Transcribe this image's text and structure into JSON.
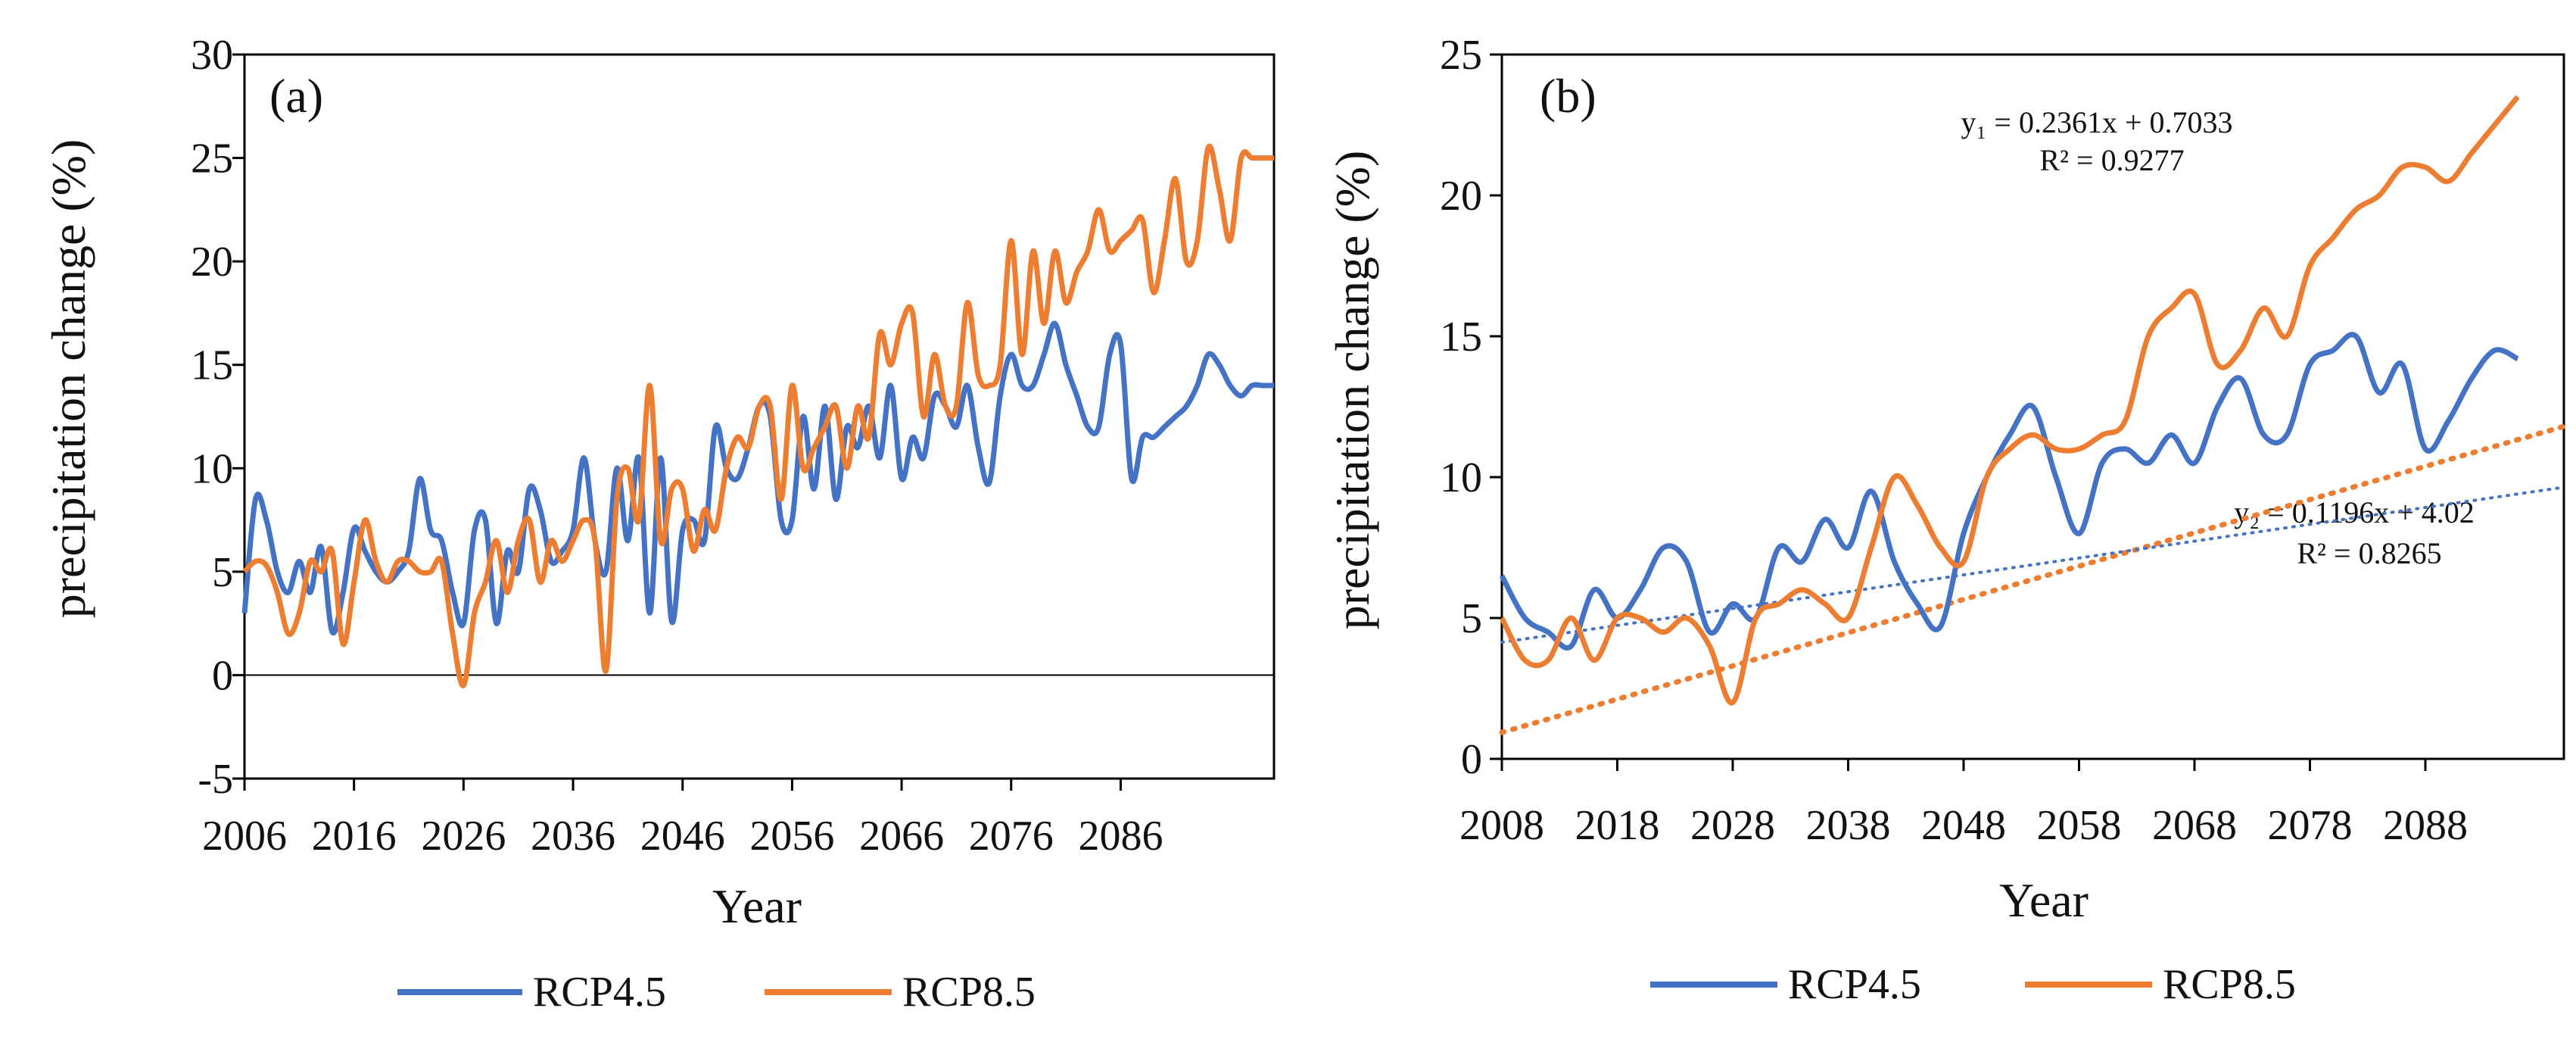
{
  "chart_data": [
    {
      "type": "line",
      "panel_label": "(a)",
      "xlabel": "Year",
      "ylabel": "precipitation  change (%)",
      "xlim": [
        2006,
        2100
      ],
      "ylim": [
        -5,
        30
      ],
      "yticks": [
        -5,
        0,
        5,
        10,
        15,
        20,
        25,
        30
      ],
      "xticks": [
        2006,
        2016,
        2026,
        2036,
        2046,
        2056,
        2066,
        2076,
        2086
      ],
      "legend_position": "bottom",
      "series": [
        {
          "name": "RCP4.5",
          "color": "#4472C4",
          "x": [
            2006,
            2007,
            2008,
            2009,
            2010,
            2011,
            2012,
            2013,
            2014,
            2015,
            2016,
            2017,
            2018,
            2019,
            2020,
            2021,
            2022,
            2023,
            2024,
            2025,
            2026,
            2027,
            2028,
            2029,
            2030,
            2031,
            2032,
            2033,
            2034,
            2035,
            2036,
            2037,
            2038,
            2039,
            2040,
            2041,
            2042,
            2043,
            2044,
            2045,
            2046,
            2047,
            2048,
            2049,
            2050,
            2051,
            2052,
            2053,
            2054,
            2055,
            2056,
            2057,
            2058,
            2059,
            2060,
            2061,
            2062,
            2063,
            2064,
            2065,
            2066,
            2067,
            2068,
            2069,
            2070,
            2071,
            2072,
            2073,
            2074,
            2075,
            2076,
            2077,
            2078,
            2079,
            2080,
            2081,
            2082,
            2083,
            2084,
            2085,
            2086,
            2087,
            2088,
            2089,
            2090,
            2091,
            2092,
            2093,
            2094,
            2095,
            2096,
            2097,
            2098,
            2099,
            2100
          ],
          "values": [
            3,
            8.5,
            7.5,
            5,
            4,
            5.5,
            4,
            6.2,
            2.1,
            4,
            7.1,
            6,
            5,
            4.5,
            5,
            6,
            9.5,
            7,
            6.5,
            4,
            2.5,
            7,
            7.5,
            2.5,
            6,
            5,
            9,
            8,
            5.5,
            6,
            7,
            10.5,
            6.5,
            5,
            10,
            6.5,
            10.5,
            3,
            10.5,
            2.6,
            7,
            7.5,
            6.5,
            12,
            10,
            9.5,
            11,
            13,
            12.5,
            7.5,
            7.5,
            12.5,
            9,
            13,
            8.5,
            12,
            11,
            13,
            10.5,
            14,
            9.5,
            11.5,
            10.5,
            13.5,
            13,
            12,
            14,
            11,
            9.3,
            13.5,
            15.5,
            14,
            14,
            15.5,
            17,
            15,
            13.5,
            12,
            12,
            15.5,
            16,
            9.5,
            11.5,
            11.5,
            12,
            12.5,
            13,
            14,
            15.5,
            15,
            14,
            13.5,
            14,
            14,
            14
          ]
        },
        {
          "name": "RCP8.5",
          "color": "#ED7D31",
          "x": [
            2006,
            2007,
            2008,
            2009,
            2010,
            2011,
            2012,
            2013,
            2014,
            2015,
            2016,
            2017,
            2018,
            2019,
            2020,
            2021,
            2022,
            2023,
            2024,
            2025,
            2026,
            2027,
            2028,
            2029,
            2030,
            2031,
            2032,
            2033,
            2034,
            2035,
            2036,
            2037,
            2038,
            2039,
            2040,
            2041,
            2042,
            2043,
            2044,
            2045,
            2046,
            2047,
            2048,
            2049,
            2050,
            2051,
            2052,
            2053,
            2054,
            2055,
            2056,
            2057,
            2058,
            2059,
            2060,
            2061,
            2062,
            2063,
            2064,
            2065,
            2066,
            2067,
            2068,
            2069,
            2070,
            2071,
            2072,
            2073,
            2074,
            2075,
            2076,
            2077,
            2078,
            2079,
            2080,
            2081,
            2082,
            2083,
            2084,
            2085,
            2086,
            2087,
            2088,
            2089,
            2090,
            2091,
            2092,
            2093,
            2094,
            2095,
            2096,
            2097,
            2098,
            2099,
            2100
          ],
          "values": [
            5,
            5.5,
            5.3,
            4,
            2,
            3,
            5.5,
            5,
            6,
            1.5,
            4.5,
            7.5,
            5.5,
            4.5,
            5.5,
            5.5,
            5,
            5,
            5.5,
            2,
            -0.5,
            3,
            4.5,
            6.5,
            4,
            6.5,
            7.5,
            4.5,
            6.5,
            5.5,
            6.5,
            7.5,
            6.5,
            0.2,
            8.5,
            10,
            7.5,
            14,
            6.5,
            9,
            9,
            6,
            8,
            7,
            10,
            11.5,
            11,
            13,
            13,
            8.5,
            14,
            10,
            11,
            12,
            13,
            10,
            13,
            11.5,
            16.5,
            15,
            17,
            17.5,
            12.5,
            15.5,
            13,
            13,
            18,
            14.5,
            14,
            15,
            21,
            15.5,
            20.5,
            17,
            20.5,
            18,
            19.5,
            20.5,
            22.5,
            20.5,
            21,
            21.5,
            22,
            18.5,
            21,
            24,
            20,
            21,
            25.5,
            23.5,
            21,
            25,
            25,
            25,
            25
          ]
        }
      ]
    },
    {
      "type": "line",
      "panel_label": "(b)",
      "xlabel": "Year",
      "ylabel": "precipitation  change (%)",
      "xlim": [
        2008,
        2100
      ],
      "ylim": [
        0,
        25
      ],
      "yticks": [
        0,
        5,
        10,
        15,
        20,
        25
      ],
      "xticks": [
        2008,
        2018,
        2028,
        2038,
        2048,
        2058,
        2068,
        2078,
        2088
      ],
      "legend_position": "bottom",
      "series": [
        {
          "name": "RCP4.5",
          "color": "#4472C4",
          "x": [
            2008,
            2010,
            2012,
            2014,
            2016,
            2018,
            2020,
            2022,
            2024,
            2026,
            2028,
            2030,
            2032,
            2034,
            2036,
            2038,
            2040,
            2042,
            2044,
            2046,
            2048,
            2050,
            2052,
            2054,
            2056,
            2058,
            2060,
            2062,
            2064,
            2066,
            2068,
            2070,
            2072,
            2074,
            2076,
            2078,
            2080,
            2082,
            2084,
            2086,
            2088,
            2090,
            2092,
            2094,
            2096
          ],
          "values": [
            6.5,
            5,
            4.5,
            4,
            6,
            5,
            6,
            7.5,
            7,
            4.5,
            5.5,
            5,
            7.5,
            7,
            8.5,
            7.5,
            9.5,
            7,
            5.5,
            4.7,
            8,
            10,
            11.5,
            12.5,
            10,
            8,
            10.5,
            11,
            10.5,
            11.5,
            10.5,
            12.5,
            13.5,
            11.5,
            11.5,
            14,
            14.5,
            15,
            13,
            14,
            11,
            12,
            13.5,
            14.5,
            14.2
          ]
        },
        {
          "name": "RCP8.5",
          "color": "#ED7D31",
          "x": [
            2008,
            2010,
            2012,
            2014,
            2016,
            2018,
            2020,
            2022,
            2024,
            2026,
            2028,
            2030,
            2032,
            2034,
            2036,
            2038,
            2040,
            2042,
            2044,
            2046,
            2048,
            2050,
            2052,
            2054,
            2056,
            2058,
            2060,
            2062,
            2064,
            2066,
            2068,
            2070,
            2072,
            2074,
            2076,
            2078,
            2080,
            2082,
            2084,
            2086,
            2088,
            2090,
            2092,
            2094,
            2096
          ],
          "values": [
            5,
            3.5,
            3.5,
            5,
            3.5,
            5,
            5,
            4.5,
            5,
            4,
            2,
            5,
            5.5,
            6,
            5.5,
            5,
            7.5,
            10,
            9,
            7.5,
            7,
            10,
            11,
            11.5,
            11,
            11,
            11.5,
            12,
            15,
            16,
            16.5,
            14,
            14.5,
            16,
            15,
            17.5,
            18.5,
            19.5,
            20,
            21,
            21,
            20.5,
            21.5,
            22.5,
            23.5
          ]
        }
      ],
      "trendlines": [
        {
          "series": "RCP8.5",
          "equation": "y₁ = 0.2361x  + 0.7033",
          "r2": "R² = 0.9277",
          "slope": 0.2361,
          "intercept": 0.7033,
          "color": "#ED7D31"
        },
        {
          "series": "RCP4.5",
          "equation": "y₂ = 0.1196x  + 4.02",
          "r2": "R² = 0.8265",
          "slope": 0.1196,
          "intercept": 4.02,
          "color": "#4472C4"
        }
      ]
    }
  ]
}
